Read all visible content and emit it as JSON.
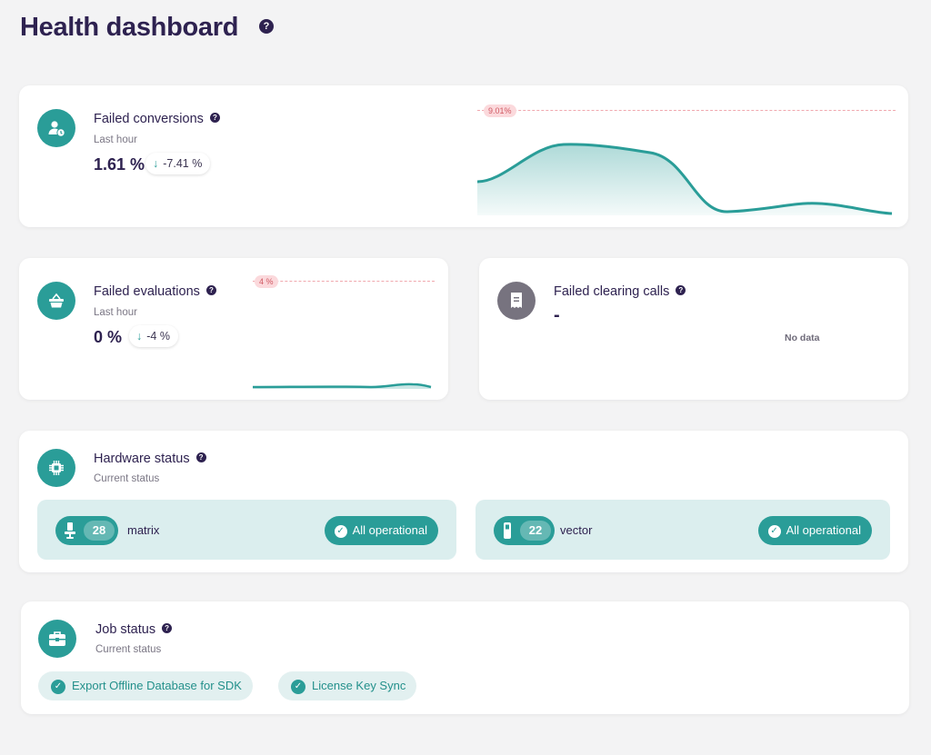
{
  "page": {
    "title": "Health dashboard",
    "help_glyph": "?"
  },
  "colors": {
    "accent": "#2a9d98",
    "heading": "#2e2250",
    "peak_line": "#f0a8ae",
    "peak_badge_bg": "#fbd9dc",
    "peak_badge_text": "#d15a64"
  },
  "failed_conversions": {
    "title": "Failed conversions",
    "period": "Last hour",
    "value": "1.61 %",
    "delta": "-7.41 %",
    "delta_arrow": "↓",
    "peak_label": "9.01%",
    "icon": "user-clock-icon"
  },
  "failed_evaluations": {
    "title": "Failed evaluations",
    "period": "Last hour",
    "value": "0 %",
    "delta": "-4 %",
    "delta_arrow": "↓",
    "peak_label": "4 %",
    "icon": "basket-icon"
  },
  "failed_clearing_calls": {
    "title": "Failed clearing calls",
    "value": "-",
    "empty_label": "No data",
    "icon": "receipt-icon"
  },
  "hardware_status": {
    "title": "Hardware status",
    "subtitle": "Current status",
    "icon": "chip-icon",
    "groups": [
      {
        "count": "28",
        "name": "matrix",
        "status": "All operational",
        "icon": "terminal-icon"
      },
      {
        "count": "22",
        "name": "vector",
        "status": "All operational",
        "icon": "handheld-icon"
      }
    ]
  },
  "job_status": {
    "title": "Job status",
    "subtitle": "Current status",
    "icon": "briefcase-icon",
    "jobs": [
      {
        "label": "Export Offline Database for SDK"
      },
      {
        "label": "License Key Sync"
      }
    ]
  }
}
